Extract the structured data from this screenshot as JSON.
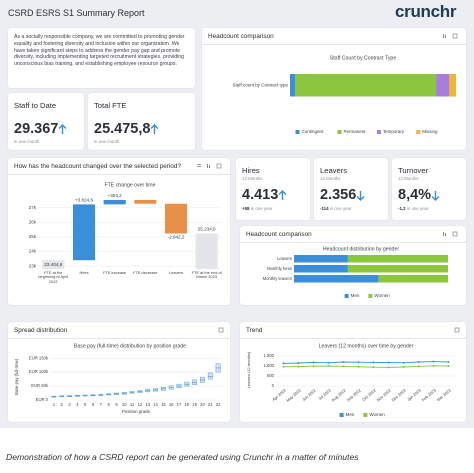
{
  "header": {
    "title": "CSRD ESRS S1 Summary Report",
    "logo": "crunchr"
  },
  "intro": "As a socially responsible company, we are committed to promoting gender equality and fostering diversity and inclusion within our organization. We have taken significant steps to address the gender pay gap and promote diversity, including implementing targeted recruitment strategies, providing unconscious bias training, and establishing employee resource groups.",
  "cards": {
    "headcount_comparison": "Headcount comparison",
    "headcount_change": "How has the headcount changed over the selected period?",
    "gender_comparison": "Headcount comparison",
    "spread": "Spread distribution",
    "trend": "Trend"
  },
  "kpis": [
    {
      "title": "Staff to Date",
      "value": "29.367",
      "note": "in one month"
    },
    {
      "title": "Total FTE",
      "value": "25.475,8",
      "note": "in one month"
    },
    {
      "title": "Hires",
      "period": "12 Months",
      "value": "4.413",
      "change": "+58",
      "note": "in one year"
    },
    {
      "title": "Leavers",
      "period": "12 Months",
      "value": "2.356",
      "change": "-114",
      "note": "in one year"
    },
    {
      "title": "Turnover",
      "period": "12 Months",
      "value": "8,4%",
      "change": "-1,2",
      "note": "in one year"
    }
  ],
  "charts": [
    {
      "type": "stacked_bar",
      "orientation": "horizontal",
      "title": "Staff Count by Contract Type",
      "categories": [
        "Staff count by Contract type"
      ],
      "xlim": [
        0,
        100
      ],
      "legend": "bottom",
      "series": [
        {
          "name": "Contingent",
          "color": "#3b8fd9",
          "values": [
            3
          ]
        },
        {
          "name": "Permanent",
          "color": "#8cc63f",
          "values": [
            85
          ]
        },
        {
          "name": "Temporary",
          "color": "#a77ddb",
          "values": [
            8
          ]
        },
        {
          "name": "Missing",
          "color": "#f2b233",
          "values": [
            4
          ]
        }
      ]
    },
    {
      "type": "waterfall",
      "title": "FTE change over time",
      "categories": [
        "FTE at the beginning of April 2022",
        "Hires",
        "FTE increase",
        "FTE decrease",
        "Leavers",
        "FTE at the end of March 2023"
      ],
      "measures": [
        "absolute",
        "relative",
        "relative",
        "relative",
        "relative",
        "absolute"
      ],
      "values": [
        23404.8,
        3824.6,
        304.2,
        -256.6,
        -2042.2,
        25234.8
      ],
      "value_labels": [
        "23.404,8",
        "+3.824,6",
        "+304,2",
        null,
        "-2.042,2",
        "25.234,8"
      ],
      "colors": {
        "total": "#e3e5e9",
        "increase": "#3b8fd9",
        "decrease": "#e8904a"
      },
      "ylim": [
        22800,
        27600
      ],
      "yticks": [
        {
          "value": 23000,
          "label": "23k"
        },
        {
          "value": 24000,
          "label": "24k"
        },
        {
          "value": 25000,
          "label": "25k"
        },
        {
          "value": 26000,
          "label": "26k"
        },
        {
          "value": 27000,
          "label": "27k"
        }
      ],
      "grid": true
    },
    {
      "type": "stacked_bar",
      "orientation": "horizontal",
      "title": "Headcount distribution by gender",
      "categories": [
        "Leavers",
        "Monthly hires",
        "Monthly leavers"
      ],
      "xlim": [
        0,
        100
      ],
      "legend": "bottom",
      "series": [
        {
          "name": "Men",
          "color": "#3b8fd9",
          "values": [
            35,
            35,
            55
          ]
        },
        {
          "name": "Women",
          "color": "#8cc63f",
          "values": [
            65,
            65,
            45
          ]
        }
      ]
    },
    {
      "type": "box",
      "title": "Base pay (full-time) distribution by position grade",
      "y_label": "Base pay (full-time)",
      "x_label": "Position grade",
      "color": "#3b8fd9",
      "categories": [
        "1",
        "2",
        "3",
        "4",
        "5",
        "6",
        "7",
        "8",
        "9",
        "10",
        "11",
        "12",
        "13",
        "14",
        "15",
        "16",
        "17",
        "18",
        "19",
        "20",
        "21",
        "22"
      ],
      "q1": [
        10000,
        11000,
        12000,
        13000,
        14000,
        15000,
        16000,
        18000,
        19000,
        21000,
        24000,
        26000,
        29000,
        32000,
        35000,
        39000,
        44000,
        49000,
        55000,
        63000,
        75000,
        100000
      ],
      "median": [
        12000,
        13000,
        14000,
        15000,
        16000,
        17000,
        18000,
        20000,
        22000,
        24000,
        27000,
        30000,
        33000,
        36000,
        40000,
        45000,
        50000,
        56000,
        63000,
        72000,
        85000,
        115000
      ],
      "q3": [
        14000,
        15000,
        16000,
        17000,
        18000,
        19000,
        21000,
        23000,
        25000,
        28000,
        31000,
        34000,
        38000,
        41000,
        46000,
        51000,
        57000,
        64000,
        72000,
        82000,
        97000,
        130000
      ],
      "ylim": [
        0,
        165000
      ],
      "yticks": [
        {
          "value": 0,
          "label": "EUR 0"
        },
        {
          "value": 50000,
          "label": "EUR 50k"
        },
        {
          "value": 100000,
          "label": "EUR 100k"
        },
        {
          "value": 150000,
          "label": "EUR 150k"
        }
      ],
      "grid": true
    },
    {
      "type": "line",
      "title": "Leavers (12 months) over time by gender",
      "y_label": "Leavers (12 months)",
      "legend": "bottom",
      "categories": [
        "Apr 2022",
        "May 2022",
        "Jun 2022",
        "Jul 2022",
        "Aug 2022",
        "Sep 2022",
        "Oct 2022",
        "Nov 2022",
        "Dec 2022",
        "Jan 2023",
        "Feb 2023",
        "Mar 2023"
      ],
      "series": [
        {
          "name": "Men",
          "color": "#3b8fd9",
          "values": [
            1130,
            1150,
            1180,
            1160,
            1200,
            1190,
            1180,
            1170,
            1160,
            1200,
            1220,
            1200
          ]
        },
        {
          "name": "Women",
          "color": "#8cc63f",
          "values": [
            960,
            970,
            990,
            1000,
            980,
            960,
            940,
            930,
            950,
            980,
            1010,
            1000
          ]
        }
      ],
      "ylim": [
        0,
        1600
      ],
      "yticks": [
        0,
        500,
        {
          "value": 1000,
          "label": "1.000"
        },
        {
          "value": 1500,
          "label": "1.500"
        }
      ],
      "grid": true
    }
  ],
  "caption": "Demonstration of how a CSRD report can be generated using Crunchr in a matter of minutes"
}
